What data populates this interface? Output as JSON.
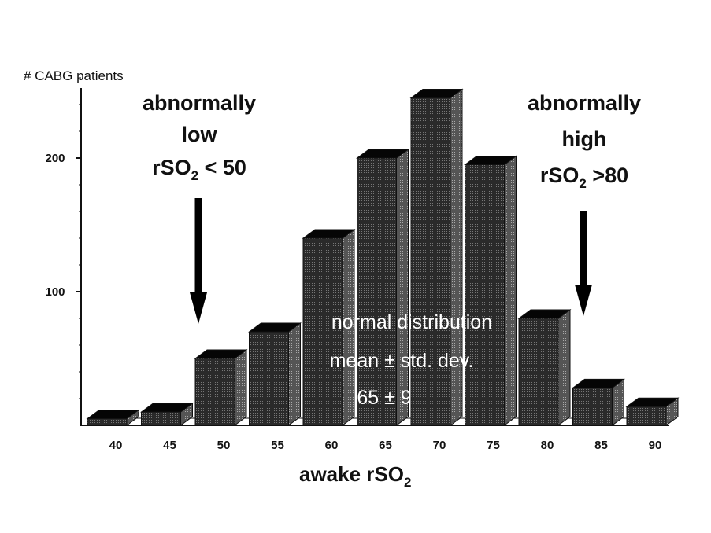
{
  "chart_data": {
    "type": "bar",
    "style": "3d-histogram",
    "ylabel": "# CABG patients",
    "xlabel": "awake rSO",
    "xlabel_sub": "2",
    "categories": [
      "40",
      "45",
      "50",
      "55",
      "60",
      "65",
      "70",
      "75",
      "80",
      "85",
      "90"
    ],
    "values": [
      5,
      10,
      50,
      70,
      140,
      200,
      245,
      195,
      80,
      28,
      14
    ],
    "yticks": [
      100,
      200
    ],
    "ylim": [
      0,
      270
    ],
    "grid": false,
    "bar_color": "#2b2b2b",
    "annotations": {
      "low": {
        "line1": "abnormally",
        "line2": "low",
        "line3_pre": "rSO",
        "line3_sub": "2",
        "line3_post": " < 50"
      },
      "high": {
        "line1": "abnormally",
        "line2": "high",
        "line3_pre": "rSO",
        "line3_sub": "2",
        "line3_post": " >80"
      },
      "normal": {
        "line1": "normal distribution",
        "line2_pre": "mean ",
        "line2_pm": "±",
        "line2_post": " std. dev.",
        "line3_pre": "65 ",
        "line3_pm": "±",
        "line3_post": " 9"
      }
    }
  }
}
